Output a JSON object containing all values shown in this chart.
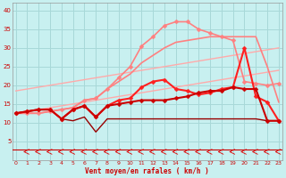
{
  "xlabel": "Vent moyen/en rafales ( km/h )",
  "background_color": "#c8f0f0",
  "grid_color": "#a8d8d8",
  "x": [
    0,
    1,
    2,
    3,
    4,
    5,
    6,
    7,
    8,
    9,
    10,
    11,
    12,
    13,
    14,
    15,
    16,
    17,
    18,
    19,
    20,
    21,
    22,
    23
  ],
  "lines": [
    {
      "y": [
        12.5,
        13.0,
        13.5,
        14.0,
        14.5,
        15.0,
        15.5,
        16.0,
        16.5,
        17.0,
        17.5,
        18.0,
        18.5,
        19.0,
        19.5,
        20.0,
        20.5,
        21.0,
        21.5,
        22.0,
        22.5,
        23.0,
        23.5,
        24.0
      ],
      "color": "#ffaaaa",
      "lw": 1.0,
      "marker": null,
      "ms": 0
    },
    {
      "y": [
        18.5,
        19.0,
        19.5,
        20.0,
        20.5,
        21.0,
        21.5,
        22.0,
        22.5,
        23.0,
        23.5,
        24.0,
        24.5,
        25.0,
        25.5,
        26.0,
        26.5,
        27.0,
        27.5,
        28.0,
        28.5,
        29.0,
        29.5,
        30.0
      ],
      "color": "#ffaaaa",
      "lw": 1.0,
      "marker": null,
      "ms": 0
    },
    {
      "y": [
        12.5,
        12.5,
        12.5,
        13.0,
        13.5,
        14.0,
        16.0,
        16.5,
        19.0,
        22.0,
        25.0,
        30.5,
        33.0,
        36.0,
        37.0,
        37.0,
        35.0,
        34.0,
        33.0,
        32.0,
        21.0,
        20.5,
        20.0,
        20.5
      ],
      "color": "#ff8080",
      "lw": 1.2,
      "marker": "D",
      "ms": 2.5
    },
    {
      "y": [
        12.5,
        12.5,
        12.5,
        13.0,
        13.5,
        14.0,
        16.0,
        16.5,
        19.0,
        21.0,
        23.0,
        26.0,
        28.0,
        30.0,
        31.5,
        32.0,
        32.5,
        33.0,
        33.0,
        33.0,
        33.0,
        33.0,
        25.0,
        15.5
      ],
      "color": "#ff8080",
      "lw": 1.2,
      "marker": null,
      "ms": 0
    },
    {
      "y": [
        12.5,
        13.0,
        13.5,
        13.5,
        11.0,
        13.5,
        14.5,
        11.5,
        14.5,
        16.0,
        16.5,
        19.5,
        21.0,
        21.5,
        19.0,
        18.5,
        17.5,
        18.0,
        19.0,
        19.5,
        30.0,
        17.0,
        15.5,
        10.5
      ],
      "color": "#ff2020",
      "lw": 1.5,
      "marker": "D",
      "ms": 2.5
    },
    {
      "y": [
        12.5,
        13.0,
        13.5,
        13.5,
        11.0,
        13.5,
        14.5,
        11.5,
        14.5,
        15.0,
        15.5,
        16.0,
        16.0,
        16.0,
        16.5,
        17.0,
        18.0,
        18.5,
        18.5,
        19.5,
        19.0,
        19.0,
        10.5,
        10.5
      ],
      "color": "#cc0000",
      "lw": 1.5,
      "marker": "D",
      "ms": 2.5
    },
    {
      "y": [
        12.5,
        13.0,
        13.5,
        13.5,
        11.0,
        10.5,
        11.5,
        7.5,
        11.0,
        11.0,
        11.0,
        11.0,
        11.0,
        11.0,
        11.0,
        11.0,
        11.0,
        11.0,
        11.0,
        11.0,
        11.0,
        11.0,
        10.5,
        10.5
      ],
      "color": "#990000",
      "lw": 1.0,
      "marker": null,
      "ms": 0
    }
  ],
  "ylim": [
    0,
    42
  ],
  "xlim": [
    -0.3,
    23.3
  ],
  "yticks": [
    5,
    10,
    15,
    20,
    25,
    30,
    35,
    40
  ],
  "xticks": [
    0,
    1,
    2,
    3,
    4,
    5,
    6,
    7,
    8,
    9,
    10,
    11,
    12,
    13,
    14,
    15,
    16,
    17,
    18,
    19,
    20,
    21,
    22,
    23
  ]
}
